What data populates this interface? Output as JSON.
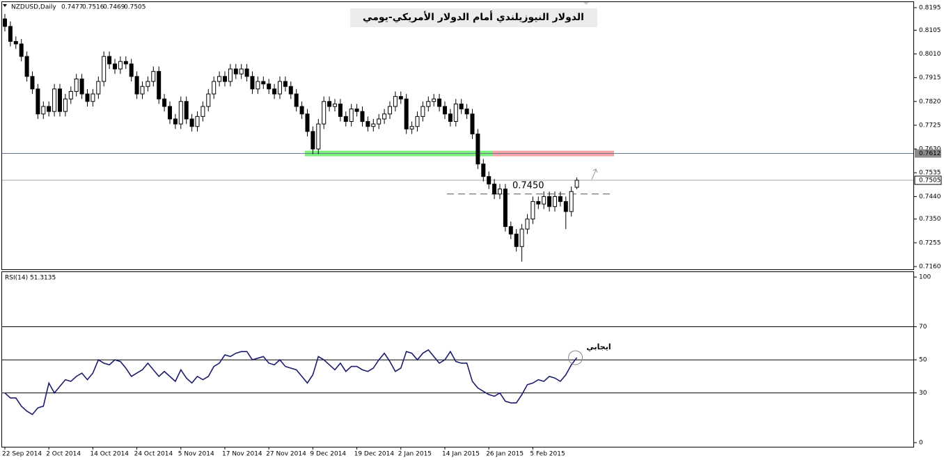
{
  "chart_data": [
    {
      "type": "candlestick",
      "symbol": "NZDUSD,Daily",
      "title": "الدولار النيوزيلندي أمام الدولار الأمريكي-يومي",
      "categories": [
        "22 Sep 2014",
        null,
        null,
        null,
        null,
        null,
        null,
        null,
        "2 Oct 2014",
        null,
        null,
        null,
        null,
        null,
        null,
        null,
        "14 Oct 2014",
        null,
        null,
        null,
        null,
        null,
        null,
        null,
        "24 Oct 2014",
        null,
        null,
        null,
        null,
        null,
        null,
        null,
        "5 Nov 2014",
        null,
        null,
        null,
        null,
        null,
        null,
        null,
        "17 Nov 2014",
        null,
        null,
        null,
        null,
        null,
        null,
        null,
        "27 Nov 2014",
        null,
        null,
        null,
        null,
        null,
        null,
        null,
        "9 Dec 2014",
        null,
        null,
        null,
        null,
        null,
        null,
        null,
        "19 Dec 2014",
        null,
        null,
        null,
        null,
        null,
        null,
        null,
        "2 Jan 2015",
        null,
        null,
        null,
        null,
        null,
        null,
        null,
        "14 Jan 2015",
        null,
        null,
        null,
        null,
        null,
        null,
        null,
        "26 Jan 2015",
        null,
        null,
        null,
        null,
        null,
        null,
        null,
        "5 Feb 2015",
        null,
        null,
        null,
        null,
        null,
        null,
        null,
        null
      ],
      "open": [
        0.815,
        0.812,
        0.806,
        0.805,
        0.8,
        0.792,
        0.787,
        0.777,
        0.78,
        0.778,
        0.787,
        0.778,
        0.783,
        0.786,
        0.791,
        0.785,
        0.782,
        0.785,
        0.79,
        0.8,
        0.797,
        0.795,
        0.798,
        0.797,
        0.792,
        0.785,
        0.788,
        0.79,
        0.794,
        0.783,
        0.78,
        0.775,
        0.773,
        0.782,
        0.775,
        0.772,
        0.776,
        0.78,
        0.785,
        0.79,
        0.792,
        0.79,
        0.795,
        0.793,
        0.795,
        0.792,
        0.787,
        0.79,
        0.789,
        0.787,
        0.785,
        0.79,
        0.788,
        0.785,
        0.78,
        0.777,
        0.77,
        0.763,
        0.773,
        0.782,
        0.78,
        0.781,
        0.776,
        0.774,
        0.779,
        0.778,
        0.774,
        0.772,
        0.773,
        0.775,
        0.777,
        0.78,
        0.784,
        0.783,
        0.771,
        0.772,
        0.776,
        0.78,
        0.782,
        0.783,
        0.78,
        0.777,
        0.774,
        0.781,
        0.779,
        0.777,
        0.769,
        0.757,
        0.752,
        0.749,
        0.745,
        0.747,
        0.732,
        0.729,
        0.724,
        0.731,
        0.735,
        0.742,
        0.741,
        0.744,
        0.74,
        0.744,
        0.742,
        0.738,
        0.7477
      ],
      "high": [
        0.817,
        0.814,
        0.808,
        0.807,
        0.802,
        0.794,
        0.789,
        0.782,
        0.782,
        0.789,
        0.789,
        0.785,
        0.788,
        0.793,
        0.793,
        0.787,
        0.787,
        0.792,
        0.802,
        0.802,
        0.799,
        0.8,
        0.8,
        0.799,
        0.794,
        0.79,
        0.792,
        0.796,
        0.796,
        0.785,
        0.782,
        0.777,
        0.784,
        0.784,
        0.777,
        0.778,
        0.782,
        0.787,
        0.792,
        0.794,
        0.794,
        0.797,
        0.797,
        0.797,
        0.797,
        0.794,
        0.792,
        0.792,
        0.791,
        0.789,
        0.792,
        0.792,
        0.79,
        0.787,
        0.782,
        0.779,
        0.772,
        0.775,
        0.784,
        0.784,
        0.783,
        0.783,
        0.778,
        0.781,
        0.781,
        0.78,
        0.776,
        0.775,
        0.777,
        0.779,
        0.782,
        0.786,
        0.786,
        0.785,
        0.774,
        0.778,
        0.782,
        0.784,
        0.785,
        0.785,
        0.782,
        0.779,
        0.783,
        0.783,
        0.781,
        0.779,
        0.771,
        0.759,
        0.754,
        0.751,
        0.749,
        0.749,
        0.734,
        0.731,
        0.733,
        0.737,
        0.744,
        0.744,
        0.746,
        0.746,
        0.746,
        0.746,
        0.744,
        0.748,
        0.7516
      ],
      "low": [
        0.81,
        0.804,
        0.803,
        0.798,
        0.79,
        0.785,
        0.775,
        0.775,
        0.776,
        0.776,
        0.776,
        0.776,
        0.781,
        0.784,
        0.783,
        0.78,
        0.78,
        0.783,
        0.788,
        0.795,
        0.793,
        0.793,
        0.795,
        0.79,
        0.783,
        0.783,
        0.786,
        0.788,
        0.781,
        0.778,
        0.773,
        0.771,
        0.771,
        0.773,
        0.77,
        0.77,
        0.774,
        0.778,
        0.783,
        0.788,
        0.788,
        0.788,
        0.791,
        0.791,
        0.79,
        0.785,
        0.785,
        0.787,
        0.785,
        0.783,
        0.783,
        0.786,
        0.783,
        0.778,
        0.775,
        0.768,
        0.761,
        0.761,
        0.771,
        0.778,
        0.778,
        0.774,
        0.772,
        0.772,
        0.776,
        0.772,
        0.77,
        0.77,
        0.771,
        0.773,
        0.775,
        0.778,
        0.781,
        0.769,
        0.769,
        0.77,
        0.774,
        0.778,
        0.78,
        0.778,
        0.775,
        0.772,
        0.772,
        0.777,
        0.775,
        0.767,
        0.755,
        0.75,
        0.747,
        0.743,
        0.743,
        0.73,
        0.727,
        0.722,
        0.718,
        0.729,
        0.733,
        0.739,
        0.739,
        0.738,
        0.738,
        0.74,
        0.731,
        0.736,
        0.7469
      ],
      "close": [
        0.812,
        0.806,
        0.805,
        0.8,
        0.792,
        0.787,
        0.777,
        0.78,
        0.778,
        0.787,
        0.778,
        0.783,
        0.786,
        0.791,
        0.785,
        0.782,
        0.785,
        0.79,
        0.8,
        0.797,
        0.795,
        0.798,
        0.797,
        0.792,
        0.785,
        0.788,
        0.79,
        0.794,
        0.783,
        0.78,
        0.775,
        0.773,
        0.782,
        0.775,
        0.772,
        0.776,
        0.78,
        0.785,
        0.79,
        0.792,
        0.79,
        0.795,
        0.793,
        0.795,
        0.792,
        0.787,
        0.79,
        0.789,
        0.787,
        0.785,
        0.79,
        0.788,
        0.785,
        0.78,
        0.777,
        0.77,
        0.763,
        0.773,
        0.782,
        0.78,
        0.781,
        0.776,
        0.774,
        0.779,
        0.778,
        0.774,
        0.772,
        0.773,
        0.775,
        0.777,
        0.78,
        0.784,
        0.783,
        0.771,
        0.772,
        0.776,
        0.78,
        0.782,
        0.783,
        0.78,
        0.777,
        0.774,
        0.781,
        0.779,
        0.777,
        0.769,
        0.757,
        0.752,
        0.749,
        0.745,
        0.747,
        0.732,
        0.729,
        0.724,
        0.731,
        0.735,
        0.742,
        0.741,
        0.744,
        0.74,
        0.744,
        0.742,
        0.738,
        0.746,
        0.7505
      ],
      "ylim": [
        0.7149,
        0.822
      ],
      "yticks": [
        {
          "value": 0.8195,
          "label": "0.8195"
        },
        {
          "value": 0.8105,
          "label": "0.8105"
        },
        {
          "value": 0.801,
          "label": "0.8010"
        },
        {
          "value": 0.7915,
          "label": "0.7915"
        },
        {
          "value": 0.782,
          "label": "0.7820"
        },
        {
          "value": 0.7725,
          "label": "0.7725"
        },
        {
          "value": 0.763,
          "label": "0.7630"
        },
        {
          "value": 0.7535,
          "label": "0.7535"
        },
        {
          "value": 0.744,
          "label": "0.7440"
        },
        {
          "value": 0.735,
          "label": "0.7350"
        },
        {
          "value": 0.7255,
          "label": "0.7255"
        },
        {
          "value": 0.716,
          "label": "0.7160"
        }
      ],
      "hlines": [
        0.7612,
        0.7505
      ],
      "annotation": {
        "value": 0.745,
        "label": "0.7450"
      }
    },
    {
      "type": "line",
      "title": "RSI(14)",
      "color": "#1c1c6c",
      "values": [
        30,
        27,
        27,
        22,
        19,
        17,
        21,
        22,
        36,
        30,
        34,
        38,
        37,
        40,
        42,
        38,
        42,
        50,
        48,
        47,
        50,
        49,
        45,
        40,
        42,
        44,
        48,
        44,
        40,
        43,
        40,
        37,
        44,
        39,
        36,
        40,
        38,
        40,
        46,
        48,
        53,
        52,
        54,
        55,
        55,
        50,
        51,
        52,
        48,
        47,
        50,
        46,
        45,
        44,
        40,
        36,
        41,
        52,
        50,
        47,
        44,
        48,
        43,
        46,
        46,
        44,
        43,
        45,
        50,
        54,
        49,
        43,
        45,
        55,
        54,
        50,
        54,
        56,
        52,
        48,
        50,
        55,
        49,
        48,
        48,
        37,
        33,
        31,
        29,
        28,
        30,
        25,
        24,
        24,
        29,
        35,
        36,
        38,
        37,
        40,
        39,
        37,
        41,
        47,
        51.3135
      ],
      "ylim": [
        -2.5,
        103.4
      ],
      "yticks": [
        100,
        70,
        50,
        30,
        0
      ],
      "levels": [
        70,
        50,
        30
      ],
      "annotation": "ايجابي"
    }
  ]
}
